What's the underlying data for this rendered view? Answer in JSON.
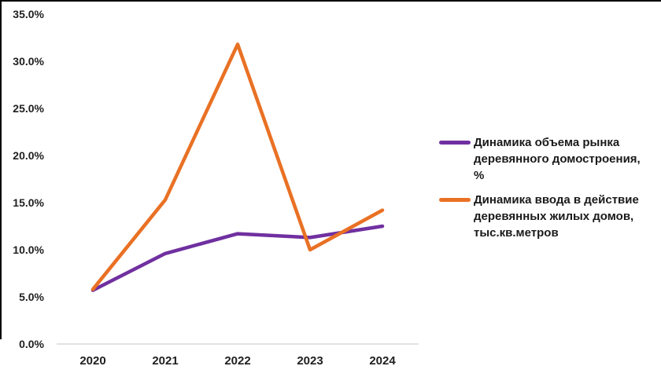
{
  "chart_data": {
    "type": "line",
    "title": "",
    "categories": [
      "2020",
      "2021",
      "2022",
      "2023",
      "2024"
    ],
    "series": [
      {
        "name": "Динамика объема рынка деревянного домостроения, %",
        "color": "#7030A0",
        "values": [
          5.7,
          9.6,
          11.7,
          11.3,
          12.5
        ]
      },
      {
        "name": "Динамика ввода в действие деревянных жилых домов, тыс.кв.метров",
        "color": "#E97124",
        "values": [
          5.8,
          15.3,
          31.8,
          10.0,
          14.2
        ]
      }
    ],
    "y_axis": {
      "min": 0,
      "max": 35,
      "step": 5,
      "tick_labels": [
        "0.0%",
        "5.0%",
        "10.0%",
        "15.0%",
        "20.0%",
        "25.0%",
        "30.0%",
        "35.0%"
      ],
      "format": "percent"
    },
    "x_axis": {
      "tick_labels": [
        "2020",
        "2021",
        "2022",
        "2023",
        "2024"
      ]
    },
    "grid": false,
    "legend_position": "right"
  },
  "legend": {
    "items": [
      {
        "label": "Динамика объема рынка\nдеревянного домостроения,\n%",
        "color": "#7030A0"
      },
      {
        "label": "Динамика ввода в действие\nдеревянных жилых домов,\nтыс.кв.метров",
        "color": "#E97124"
      }
    ]
  },
  "colors": {
    "axis_line": "#D9D9D9",
    "text": "#1F1F1F",
    "background": "#FFFFFF",
    "frame": "#000000"
  }
}
